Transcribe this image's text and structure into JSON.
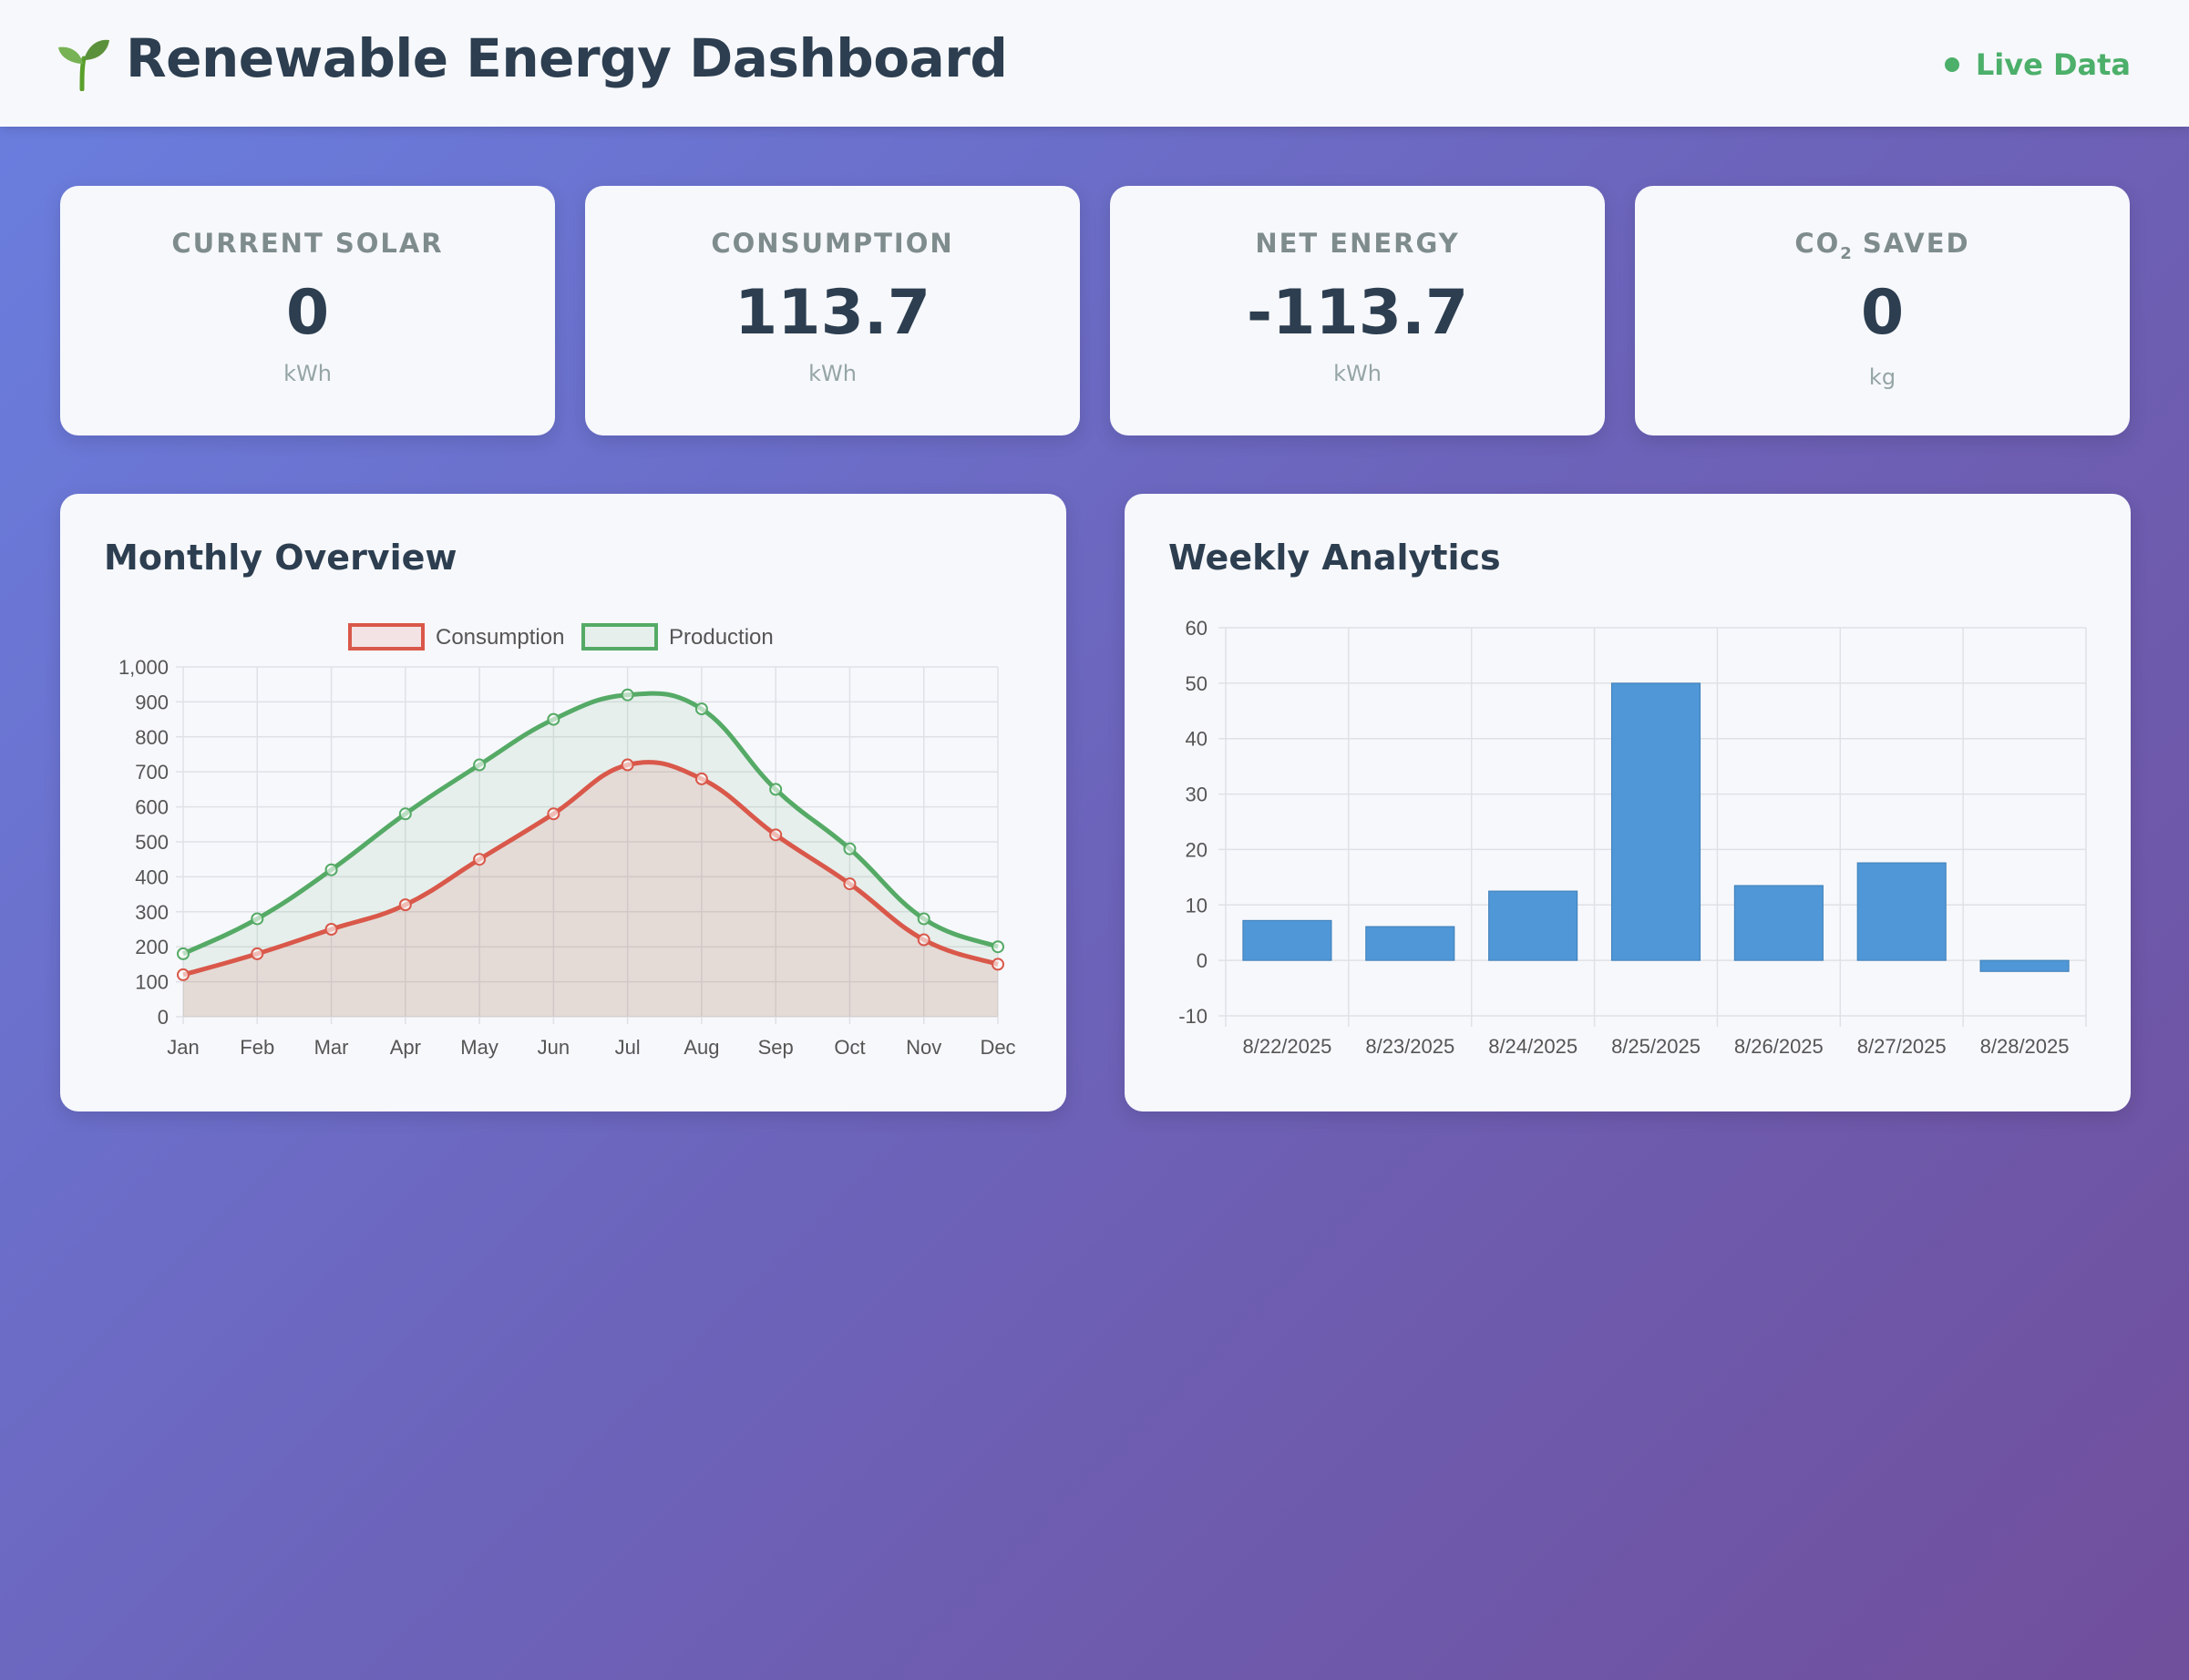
{
  "header": {
    "title": "Renewable Energy Dashboard",
    "logo_icon": "seedling-icon",
    "live_label": "Live Data",
    "live_color": "#4caf6a"
  },
  "stats": [
    {
      "label": "CURRENT SOLAR",
      "value": "0",
      "unit": "kWh"
    },
    {
      "label": "CONSUMPTION",
      "value": "113.7",
      "unit": "kWh"
    },
    {
      "label": "NET ENERGY",
      "value": "-113.7",
      "unit": "kWh"
    },
    {
      "label_main": "CO",
      "label_sub": "2",
      "label_rest": " SAVED",
      "value": "0",
      "unit": "kg"
    }
  ],
  "monthly": {
    "title": "Monthly Overview",
    "chart_data": {
      "type": "area",
      "categories": [
        "Jan",
        "Feb",
        "Mar",
        "Apr",
        "May",
        "Jun",
        "Jul",
        "Aug",
        "Sep",
        "Oct",
        "Nov",
        "Dec"
      ],
      "series": [
        {
          "name": "Consumption",
          "color": "#d9584a",
          "values": [
            120,
            180,
            250,
            320,
            450,
            580,
            720,
            680,
            520,
            380,
            220,
            150
          ]
        },
        {
          "name": "Production",
          "color": "#55aa66",
          "values": [
            180,
            280,
            420,
            580,
            720,
            850,
            920,
            880,
            650,
            480,
            280,
            200
          ]
        }
      ],
      "ylim": [
        0,
        1000
      ],
      "yticks": [
        "0",
        "100",
        "200",
        "300",
        "400",
        "500",
        "600",
        "700",
        "800",
        "900",
        "1,000"
      ],
      "legend": "top",
      "grid": true
    }
  },
  "weekly": {
    "title": "Weekly Analytics",
    "chart_data": {
      "type": "bar",
      "categories": [
        "8/22/2025",
        "8/23/2025",
        "8/24/2025",
        "8/25/2025",
        "8/26/2025",
        "8/27/2025",
        "8/28/2025"
      ],
      "values": [
        7.2,
        6.1,
        12.5,
        50,
        13.5,
        17.6,
        -2
      ],
      "color": "#4f97d6",
      "ylim": [
        -10,
        60
      ],
      "yticks": [
        "-10",
        "0",
        "10",
        "20",
        "30",
        "40",
        "50",
        "60"
      ],
      "grid": true
    }
  }
}
